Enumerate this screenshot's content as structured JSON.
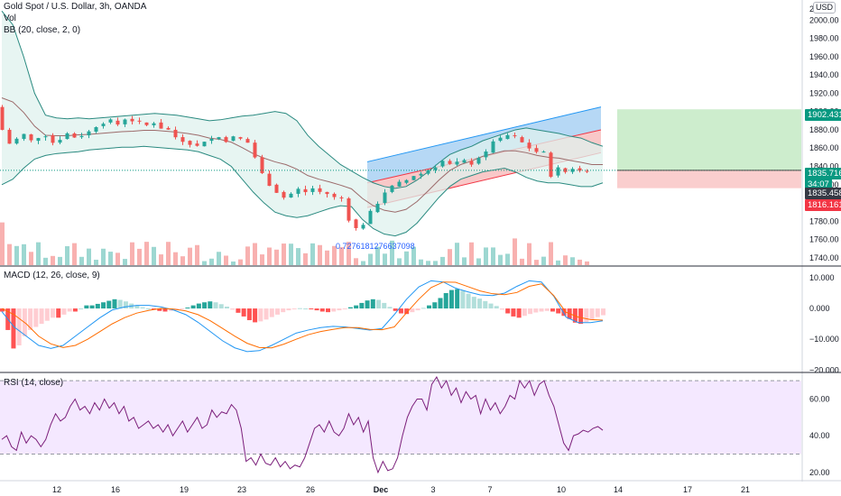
{
  "colors": {
    "up": "#26a69a",
    "down": "#ef5350",
    "bb": "#2a8a80",
    "bb_fill": "#dff1ee",
    "ma": "#9c6b6b",
    "macd": "#2196f3",
    "signal": "#ff6d00",
    "rsi_line": "#7b1f7b",
    "rsi_band": "#f3e5ff",
    "channel_blue": "#9dcbf2",
    "channel_red": "#f7b6b6",
    "long_green": "#c8ebc8",
    "long_red": "#f9c9c9",
    "price_green": "#089981",
    "price_dark": "#363a45",
    "price_red": "#f23645"
  },
  "header": {
    "symbol": "Gold Spot / U.S. Dollar, 3h, OANDA",
    "vol_label": "Vol",
    "bb_label": "BB (20, close, 2, 0)",
    "currency": "USD"
  },
  "macd_label": "MACD (12, 26, close, 9)",
  "rsi_label": "RSI (14, close)",
  "fib_label": "0.7276181276637098",
  "price_tags": {
    "target": "1902.431",
    "current": "1835.716",
    "countdown": "34:07",
    "last": "1835.458",
    "stop": "1816.161"
  },
  "chart_data": [
    {
      "type": "candlestick",
      "title": "Gold Spot / U.S. Dollar, 3h, OANDA",
      "x_ticks": [
        "12",
        "16",
        "19",
        "23",
        "26",
        "Dec",
        "3",
        "7",
        "10",
        "14",
        "17",
        "21"
      ],
      "y_ticks": [
        1740,
        1760,
        1780,
        1800,
        1820,
        1840,
        1860,
        1880,
        1900,
        1920,
        1940,
        1960,
        1980,
        2000
      ],
      "y_partial_top": "20",
      "ylim": [
        1732,
        2022
      ],
      "price_path": [
        1905,
        1880,
        1865,
        1870,
        1875,
        1868,
        1872,
        1874,
        1866,
        1870,
        1876,
        1872,
        1874,
        1878,
        1884,
        1888,
        1890,
        1886,
        1892,
        1890,
        1888,
        1885,
        1888,
        1882,
        1880,
        1872,
        1868,
        1865,
        1862,
        1868,
        1870,
        1872,
        1868,
        1872,
        1870,
        1866,
        1850,
        1832,
        1820,
        1812,
        1806,
        1810,
        1815,
        1812,
        1816,
        1812,
        1810,
        1806,
        1805,
        1782,
        1772,
        1777,
        1790,
        1800,
        1812,
        1818,
        1822,
        1825,
        1830,
        1832,
        1836,
        1840,
        1846,
        1842,
        1844,
        1846,
        1843,
        1850,
        1855,
        1868,
        1870,
        1874,
        1872,
        1866,
        1860,
        1856,
        1855,
        1830,
        1838,
        1834,
        1838,
        1835,
        1836
      ],
      "bb_upper": [
        2010,
        1995,
        1960,
        1920,
        1896,
        1893,
        1892,
        1893,
        1892,
        1893,
        1894,
        1895,
        1896,
        1897,
        1898,
        1897,
        1896,
        1894,
        1892,
        1890,
        1891,
        1893,
        1895,
        1896,
        1898,
        1900,
        1898,
        1890,
        1874,
        1862,
        1852,
        1842,
        1835,
        1828,
        1822,
        1818,
        1816,
        1818,
        1825,
        1834,
        1844,
        1853,
        1858,
        1862,
        1868,
        1872,
        1876,
        1880,
        1882,
        1880,
        1878,
        1876,
        1873,
        1871,
        1866,
        1862
      ],
      "bb_lower": [
        1820,
        1826,
        1838,
        1848,
        1852,
        1854,
        1855,
        1856,
        1858,
        1859,
        1860,
        1861,
        1861,
        1862,
        1861,
        1860,
        1859,
        1858,
        1856,
        1852,
        1848,
        1840,
        1826,
        1812,
        1800,
        1790,
        1786,
        1784,
        1786,
        1790,
        1794,
        1797,
        1796,
        1782,
        1772,
        1766,
        1764,
        1768,
        1778,
        1792,
        1806,
        1818,
        1826,
        1830,
        1834,
        1836,
        1838,
        1834,
        1828,
        1824,
        1822,
        1822,
        1820,
        1818,
        1818,
        1822
      ],
      "fib_text": "0.7276181276637098",
      "current_price": 1835.716
    },
    {
      "type": "histogram+line",
      "title": "MACD (12, 26, close, 9)",
      "y_ticks": [
        10.0,
        0.0,
        -10.0,
        -20.0
      ],
      "y_tick_labels": [
        "10.000",
        "0.000",
        "−10.000",
        "−20.000"
      ],
      "ylim": [
        -20.5,
        13.5
      ],
      "histogram": [
        -1,
        -7,
        -13,
        -12,
        -9,
        -7,
        -6,
        -5,
        -4,
        -3,
        -3,
        -2,
        -1,
        -1,
        0,
        1,
        1,
        1.5,
        2,
        2.5,
        3,
        2.8,
        2.3,
        1.6,
        1,
        0.4,
        0,
        -0.4,
        -0.8,
        -1,
        -0.8,
        -0.5,
        -0.2,
        0.3,
        1,
        1.6,
        2,
        2.3,
        2,
        1.4,
        0.6,
        -0.4,
        -1.4,
        -2.6,
        -3.8,
        -4.5,
        -4.2,
        -3.6,
        -2.8,
        -2,
        -1.2,
        -0.6,
        -0.2,
        0.1,
        0,
        -0.2,
        -0.6,
        -1,
        -1.2,
        -1,
        -0.6,
        -0.1,
        0.4,
        1,
        1.8,
        2.6,
        3,
        2.8,
        1.8,
        0.5,
        -0.8,
        -1.6,
        -1.8,
        -1.2,
        -0.6,
        0.2,
        1,
        2,
        3.4,
        5,
        6,
        6.3,
        5.8,
        4.8,
        3.8,
        3.2,
        2.4,
        1.6,
        0.8,
        -0.4,
        -1.6,
        -2.6,
        -3,
        -2.4,
        -1.8,
        -1.3,
        -1,
        -0.8,
        -1,
        -1.6,
        -2.4,
        -3.4,
        -4.6,
        -5,
        -4.4,
        -3.6,
        -2.8,
        -2.2
      ],
      "macd_line": [
        -1,
        -6,
        -9,
        -12,
        -13,
        -12,
        -9,
        -6,
        -3,
        -0.5,
        0.5,
        1,
        1,
        0.5,
        -0.5,
        -2,
        -4.5,
        -7.5,
        -10.5,
        -12.8,
        -14,
        -13.7,
        -12,
        -10,
        -8,
        -7,
        -6.2,
        -5.8,
        -6,
        -6.5,
        -7,
        -6.5,
        -2,
        3,
        7,
        9,
        8.6,
        6.6,
        5.4,
        4.4,
        4.2,
        5,
        7.2,
        9,
        8.6,
        4,
        -2.8,
        -4.6,
        -4.6,
        -4
      ],
      "signal_line": [
        0,
        -2,
        -5,
        -9,
        -11.5,
        -12.7,
        -12,
        -10,
        -7.5,
        -5,
        -3,
        -1.5,
        -0.6,
        0,
        -0.2,
        -0.8,
        -2,
        -4,
        -6.5,
        -9,
        -11.3,
        -12.7,
        -12.8,
        -11.6,
        -10,
        -8.5,
        -7.5,
        -6.8,
        -6.2,
        -6.2,
        -6.8,
        -6.9,
        -6,
        -1.4,
        3,
        6.8,
        8.6,
        8.5,
        7.1,
        5.7,
        4.8,
        4.5,
        5.2,
        7.2,
        8,
        4.2,
        -1.2,
        -2.8,
        -3.6,
        -3.8
      ]
    },
    {
      "type": "line",
      "title": "RSI (14, close)",
      "y_ticks": [
        60,
        40,
        20
      ],
      "y_tick_labels": [
        "60.00",
        "40.00",
        "20.00"
      ],
      "band": [
        30,
        70
      ],
      "ylim": [
        16,
        74
      ],
      "values": [
        38,
        40,
        34,
        32,
        42,
        36,
        40,
        38,
        34,
        38,
        46,
        52,
        48,
        50,
        56,
        60,
        54,
        56,
        52,
        58,
        54,
        60,
        55,
        58,
        52,
        56,
        48,
        50,
        44,
        46,
        48,
        44,
        46,
        42,
        46,
        40,
        44,
        48,
        42,
        46,
        50,
        44,
        46,
        54,
        50,
        53,
        52,
        57,
        54,
        44,
        26,
        28,
        24,
        30,
        25,
        24,
        28,
        23,
        26,
        22,
        24,
        23,
        28,
        36,
        44,
        46,
        42,
        48,
        42,
        40,
        44,
        52,
        46,
        50,
        42,
        48,
        28,
        20,
        26,
        21,
        22,
        28,
        40,
        50,
        56,
        60,
        60,
        54,
        68,
        72,
        66,
        70,
        62,
        66,
        58,
        64,
        60,
        62,
        52,
        60,
        54,
        58,
        52,
        56,
        62,
        60,
        70,
        66,
        70,
        62,
        68,
        70,
        62,
        56,
        46,
        36,
        32,
        40,
        41,
        43,
        42,
        44,
        45,
        43
      ]
    }
  ]
}
